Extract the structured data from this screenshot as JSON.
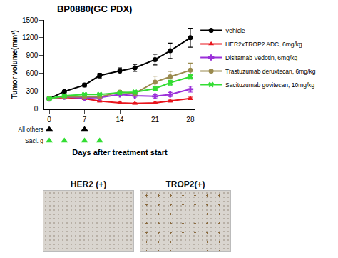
{
  "chart_data": {
    "type": "line",
    "title": "BP0880(GC PDX)",
    "x_label": "Days after treatment start",
    "y_label": "Tumor volume(mm³)",
    "x": [
      0,
      3,
      7,
      10,
      14,
      17,
      21,
      24,
      28
    ],
    "xlim": [
      -1,
      29
    ],
    "xticks": [
      0,
      7,
      14,
      21,
      28
    ],
    "ylim": [
      0,
      1500
    ],
    "yticks": [
      0,
      300,
      600,
      900,
      1200,
      1500
    ],
    "legend": "right",
    "series": [
      {
        "name": "Vehicle",
        "color": "#000000",
        "marker": "circle",
        "values": [
          170,
          290,
          400,
          560,
          640,
          690,
          830,
          980,
          1200
        ],
        "errors": [
          15,
          20,
          30,
          40,
          50,
          60,
          90,
          130,
          160
        ]
      },
      {
        "name": "HER2xTROP2 ADC, 6mg/kg",
        "color": "#e8141c",
        "marker": "triangle-up",
        "values": [
          170,
          190,
          170,
          130,
          100,
          90,
          100,
          130,
          175
        ],
        "errors": [
          10,
          15,
          15,
          15,
          10,
          10,
          10,
          15,
          20
        ]
      },
      {
        "name": "Disitamab Vedotin, 6mg/kg",
        "color": "#9b30d9",
        "marker": "cross",
        "values": [
          170,
          200,
          180,
          190,
          240,
          220,
          210,
          240,
          330
        ],
        "errors": [
          10,
          15,
          15,
          20,
          20,
          25,
          30,
          35,
          50
        ]
      },
      {
        "name": "Trastuzumab deruxtecan, 6mg/kg",
        "color": "#9a8a4e",
        "marker": "circle",
        "values": [
          170,
          200,
          200,
          200,
          280,
          260,
          450,
          540,
          650
        ],
        "errors": [
          10,
          15,
          20,
          20,
          30,
          30,
          100,
          90,
          120
        ]
      },
      {
        "name": "Sacituzumab govitecan, 10mg/kg",
        "color": "#33dd33",
        "marker": "x",
        "values": [
          170,
          220,
          240,
          240,
          270,
          280,
          340,
          440,
          540
        ],
        "errors": [
          10,
          15,
          20,
          20,
          25,
          25,
          35,
          40,
          40
        ]
      }
    ],
    "dosing": [
      {
        "label": "All others",
        "color": "#000000",
        "marker": "triangle-up",
        "days": [
          0,
          7
        ]
      },
      {
        "label": "Saci. g",
        "color": "#33dd33",
        "marker": "triangle-up",
        "days": [
          0,
          3,
          7,
          10
        ]
      }
    ]
  },
  "panels": [
    {
      "label": "HER2 (+)"
    },
    {
      "label": "TROP2(+)"
    }
  ]
}
